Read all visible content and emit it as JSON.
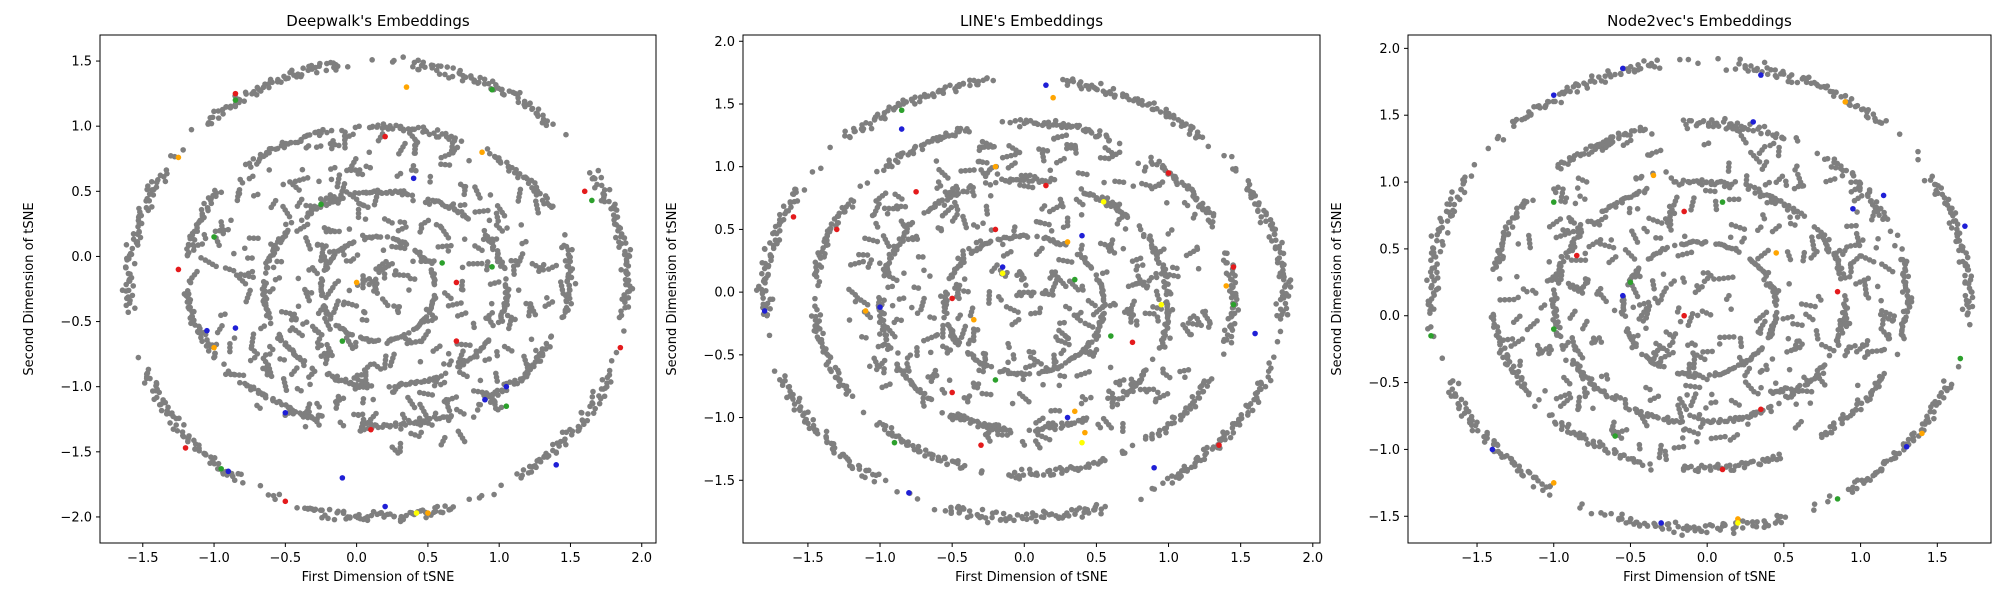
{
  "chart_data": [
    {
      "type": "scatter",
      "title": "Deepwalk's Embeddings",
      "xlabel": "First Dimension of tSNE",
      "ylabel": "Second Dimension of tSNE",
      "xlim": [
        -1.8,
        2.1
      ],
      "ylim": [
        -2.2,
        1.7
      ],
      "xticks": [
        -1.5,
        -1.0,
        -0.5,
        0.0,
        0.5,
        1.0,
        1.5,
        2.0
      ],
      "xtick_labels": [
        "−1.5",
        "−1.0",
        "−0.5",
        "0.0",
        "0.5",
        "1.0",
        "1.5",
        "2.0"
      ],
      "yticks": [
        -2.0,
        -1.5,
        -1.0,
        -0.5,
        0.0,
        0.5,
        1.0,
        1.5
      ],
      "ytick_labels": [
        "−2.0",
        "−1.5",
        "−1.0",
        "−0.5",
        "0.0",
        "0.5",
        "1.0",
        "1.5"
      ],
      "rings": [
        {
          "cx": 0.15,
          "cy": -0.25,
          "rx": 1.75,
          "ry": 1.75
        },
        {
          "cx": 0.15,
          "cy": -0.15,
          "rx": 1.35,
          "ry": 1.15
        },
        {
          "cx": 0.2,
          "cy": -0.25,
          "rx": 0.85,
          "ry": 0.75
        },
        {
          "cx": 0.15,
          "cy": -0.25,
          "rx": 0.4,
          "ry": 0.4
        }
      ],
      "colored_points": [
        {
          "color": "#e41a1c",
          "points": [
            [
              0.2,
              0.92
            ],
            [
              1.6,
              0.5
            ],
            [
              0.7,
              -0.65
            ],
            [
              -1.25,
              -0.1
            ],
            [
              1.85,
              -0.7
            ],
            [
              -1.2,
              -1.47
            ],
            [
              -0.5,
              -1.88
            ],
            [
              0.1,
              -1.33
            ],
            [
              -0.85,
              1.25
            ],
            [
              0.7,
              -0.2
            ]
          ]
        },
        {
          "color": "#1f1fd6",
          "points": [
            [
              -1.05,
              -0.57
            ],
            [
              0.9,
              -1.1
            ],
            [
              1.05,
              -1.0
            ],
            [
              -0.5,
              -1.2
            ],
            [
              0.2,
              -1.92
            ],
            [
              -0.1,
              -1.7
            ],
            [
              0.4,
              0.6
            ],
            [
              -0.85,
              -0.55
            ],
            [
              1.4,
              -1.6
            ],
            [
              -0.9,
              -1.65
            ]
          ]
        },
        {
          "color": "#2ca02c",
          "points": [
            [
              -1.0,
              0.15
            ],
            [
              0.95,
              -0.08
            ],
            [
              -0.85,
              1.2
            ],
            [
              1.05,
              -1.15
            ],
            [
              1.65,
              0.43
            ],
            [
              -0.95,
              -1.63
            ],
            [
              0.95,
              1.28
            ],
            [
              0.6,
              -0.05
            ],
            [
              -0.1,
              -0.65
            ],
            [
              -0.25,
              0.4
            ]
          ]
        },
        {
          "color": "#ffa500",
          "points": [
            [
              -1.25,
              0.76
            ],
            [
              -1.0,
              -0.7
            ],
            [
              0.0,
              -0.2
            ],
            [
              0.5,
              -1.97
            ],
            [
              0.35,
              1.3
            ],
            [
              0.88,
              0.8
            ]
          ]
        },
        {
          "color": "#ffff00",
          "points": [
            [
              0.42,
              -1.97
            ]
          ]
        }
      ]
    },
    {
      "type": "scatter",
      "title": "LINE's Embeddings",
      "xlabel": "First Dimension of tSNE",
      "ylabel": "Second Dimension of tSNE",
      "xlim": [
        -1.95,
        2.05
      ],
      "ylim": [
        -2.0,
        2.05
      ],
      "xticks": [
        -1.5,
        -1.0,
        -0.5,
        0.0,
        0.5,
        1.0,
        1.5,
        2.0
      ],
      "xtick_labels": [
        "−1.5",
        "−1.0",
        "−0.5",
        "0.0",
        "0.5",
        "1.0",
        "1.5",
        "2.0"
      ],
      "yticks": [
        -1.5,
        -1.0,
        -0.5,
        0.0,
        0.5,
        1.0,
        1.5,
        2.0
      ],
      "ytick_labels": [
        "−1.5",
        "−1.0",
        "−0.5",
        "0.0",
        "0.5",
        "1.0",
        "1.5",
        "2.0"
      ],
      "rings": [
        {
          "cx": 0.0,
          "cy": -0.05,
          "rx": 1.8,
          "ry": 1.75
        },
        {
          "cx": 0.0,
          "cy": -0.05,
          "rx": 1.45,
          "ry": 1.4
        },
        {
          "cx": 0.0,
          "cy": -0.1,
          "rx": 1.0,
          "ry": 1.0
        },
        {
          "cx": 0.0,
          "cy": -0.1,
          "rx": 0.55,
          "ry": 0.55
        }
      ],
      "colored_points": [
        {
          "color": "#e41a1c",
          "points": [
            [
              -1.6,
              0.6
            ],
            [
              -0.75,
              0.8
            ],
            [
              -0.5,
              -0.05
            ],
            [
              -0.5,
              -0.8
            ],
            [
              -0.3,
              -1.22
            ],
            [
              0.15,
              0.85
            ],
            [
              0.75,
              -0.4
            ],
            [
              1.0,
              0.95
            ],
            [
              1.45,
              0.2
            ],
            [
              1.35,
              -1.22
            ],
            [
              -0.2,
              0.5
            ],
            [
              -1.3,
              0.5
            ]
          ]
        },
        {
          "color": "#1f1fd6",
          "points": [
            [
              -1.8,
              -0.15
            ],
            [
              -0.85,
              1.3
            ],
            [
              0.15,
              1.65
            ],
            [
              0.3,
              -1.0
            ],
            [
              0.9,
              -1.4
            ],
            [
              -1.0,
              -0.12
            ],
            [
              0.4,
              0.45
            ],
            [
              1.6,
              -0.33
            ],
            [
              -0.8,
              -1.6
            ],
            [
              -0.15,
              0.2
            ]
          ]
        },
        {
          "color": "#2ca02c",
          "points": [
            [
              -0.85,
              1.45
            ],
            [
              -0.9,
              -1.2
            ],
            [
              0.35,
              0.1
            ],
            [
              0.6,
              -0.35
            ],
            [
              1.45,
              -0.1
            ],
            [
              -0.2,
              -0.7
            ]
          ]
        },
        {
          "color": "#ffa500",
          "points": [
            [
              -0.2,
              1.0
            ],
            [
              0.3,
              0.4
            ],
            [
              -1.1,
              -0.15
            ],
            [
              0.35,
              -0.95
            ],
            [
              0.42,
              -1.12
            ],
            [
              1.4,
              0.05
            ],
            [
              -0.35,
              -0.22
            ],
            [
              0.2,
              1.55
            ]
          ]
        },
        {
          "color": "#ffff00",
          "points": [
            [
              0.95,
              -0.1
            ],
            [
              0.55,
              0.72
            ],
            [
              -0.15,
              0.15
            ],
            [
              0.4,
              -1.2
            ]
          ]
        }
      ]
    },
    {
      "type": "scatter",
      "title": "Node2vec's Embeddings",
      "xlabel": "First Dimension of tSNE",
      "ylabel": "Second Dimension of tSNE",
      "xlim": [
        -1.95,
        1.85
      ],
      "ylim": [
        -1.7,
        2.1
      ],
      "xticks": [
        -1.5,
        -1.0,
        -0.5,
        0.0,
        0.5,
        1.0,
        1.5
      ],
      "xtick_labels": [
        "−1.5",
        "−1.0",
        "−0.5",
        "0.0",
        "0.5",
        "1.0",
        "1.5"
      ],
      "yticks": [
        -1.5,
        -1.0,
        -0.5,
        0.0,
        0.5,
        1.0,
        1.5,
        2.0
      ],
      "ytick_labels": [
        "−1.5",
        "−1.0",
        "−0.5",
        "0.0",
        "0.5",
        "1.0",
        "1.5",
        "2.0"
      ],
      "rings": [
        {
          "cx": -0.05,
          "cy": 0.15,
          "rx": 1.75,
          "ry": 1.75
        },
        {
          "cx": -0.05,
          "cy": 0.15,
          "rx": 1.35,
          "ry": 1.3
        },
        {
          "cx": -0.05,
          "cy": 0.1,
          "rx": 0.95,
          "ry": 0.9
        },
        {
          "cx": -0.05,
          "cy": 0.05,
          "rx": 0.5,
          "ry": 0.5
        }
      ],
      "colored_points": [
        {
          "color": "#e41a1c",
          "points": [
            [
              -0.15,
              0.78
            ],
            [
              -0.85,
              0.45
            ],
            [
              -0.15,
              0.0
            ],
            [
              0.35,
              -0.7
            ],
            [
              0.85,
              0.18
            ],
            [
              0.1,
              -1.15
            ]
          ]
        },
        {
          "color": "#1f1fd6",
          "points": [
            [
              -1.0,
              1.65
            ],
            [
              -0.55,
              1.85
            ],
            [
              0.35,
              1.8
            ],
            [
              1.15,
              0.9
            ],
            [
              1.3,
              -0.98
            ],
            [
              -1.4,
              -1.0
            ],
            [
              -0.3,
              -1.55
            ],
            [
              0.3,
              1.45
            ],
            [
              -0.55,
              0.15
            ],
            [
              1.68,
              0.67
            ],
            [
              0.95,
              0.8
            ]
          ]
        },
        {
          "color": "#2ca02c",
          "points": [
            [
              -1.8,
              -0.15
            ],
            [
              -1.0,
              0.85
            ],
            [
              -0.5,
              0.25
            ],
            [
              0.1,
              0.85
            ],
            [
              -1.0,
              -0.1
            ],
            [
              1.65,
              -0.32
            ],
            [
              -0.6,
              -0.9
            ],
            [
              0.85,
              -1.37
            ]
          ]
        },
        {
          "color": "#ffa500",
          "points": [
            [
              -1.0,
              -1.25
            ],
            [
              0.2,
              -1.52
            ],
            [
              1.4,
              -0.88
            ],
            [
              -0.35,
              1.05
            ],
            [
              0.9,
              1.6
            ],
            [
              0.45,
              0.47
            ]
          ]
        },
        {
          "color": "#ffff00",
          "points": [
            [
              0.2,
              -1.55
            ]
          ]
        }
      ]
    }
  ]
}
